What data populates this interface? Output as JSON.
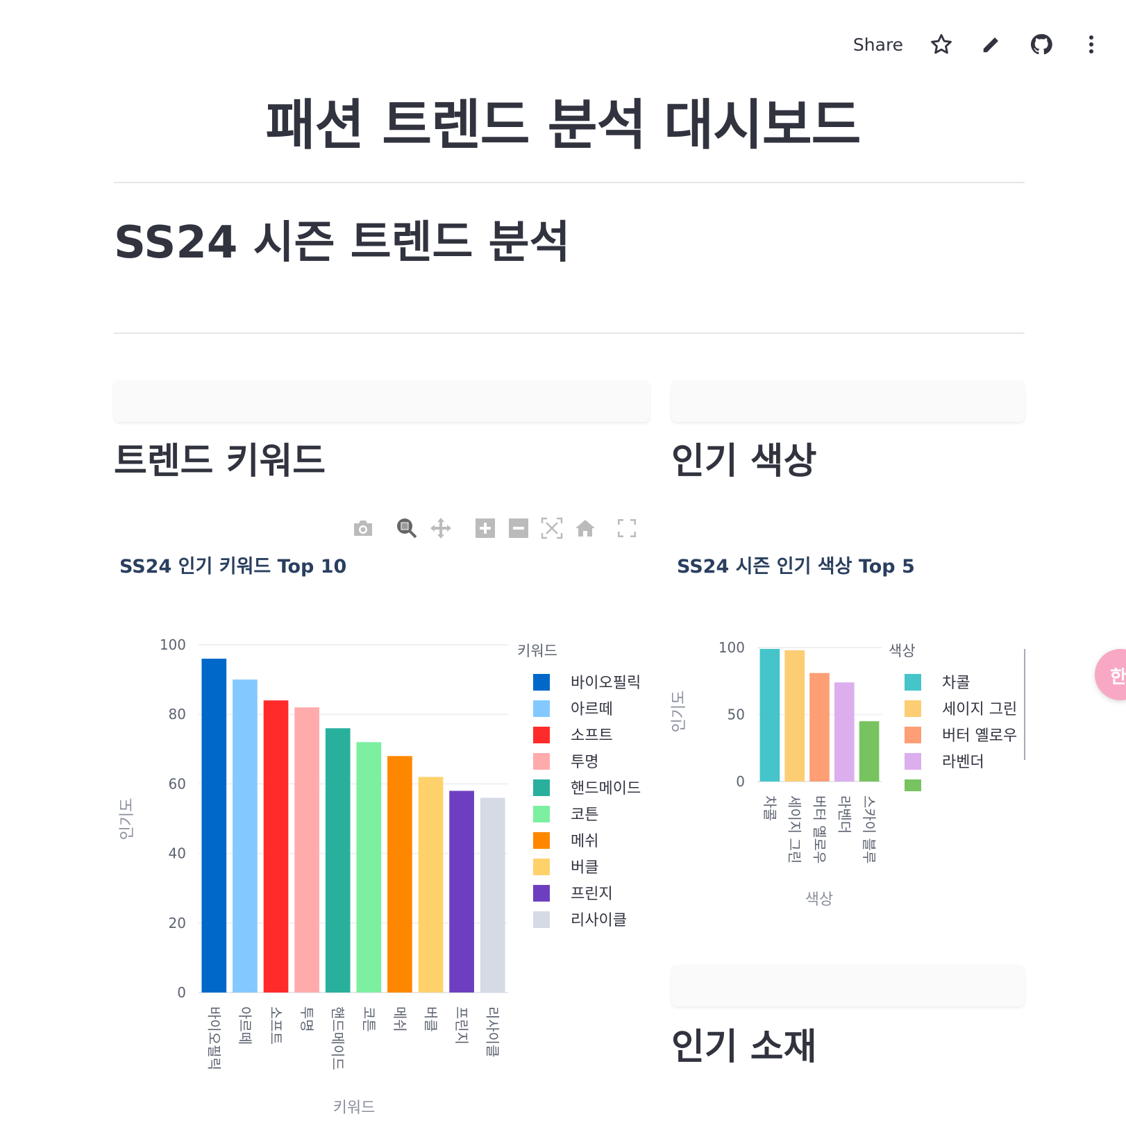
{
  "header": {
    "share_label": "Share",
    "icons": [
      "star-icon",
      "pencil-icon",
      "github-icon",
      "more-vertical-icon"
    ]
  },
  "page_title": "패션 트렌드 분석 대시보드",
  "section_title": "SS24 시즌 트렌드 분석",
  "left_column": {
    "heading": "트렌드 키워드"
  },
  "right_column": {
    "heading": "인기 색상",
    "heading2": "인기 소재"
  },
  "modebar": [
    "camera-icon",
    "zoom-icon",
    "pan-icon",
    "zoom-in-icon",
    "zoom-out-icon",
    "autoscale-icon",
    "reset-axes-icon",
    "fullscreen-icon"
  ],
  "floating_button": {
    "label": "한"
  },
  "chart_data": [
    {
      "type": "bar",
      "title": "SS24 인기 키워드 Top 10",
      "xlabel": "키워드",
      "ylabel": "인기도",
      "ylim": [
        0,
        100
      ],
      "yticks": [
        0,
        20,
        40,
        60,
        80,
        100
      ],
      "grid": true,
      "legend_title": "키워드",
      "legend_placement": "right",
      "categories": [
        "바이오필릭",
        "아르떼",
        "소프트",
        "투명",
        "핸드메이드",
        "코튼",
        "메쉬",
        "버클",
        "프린지",
        "리사이클"
      ],
      "values": [
        96,
        90,
        84,
        82,
        76,
        72,
        68,
        62,
        58,
        56
      ],
      "colors": [
        "#0068c9",
        "#83c9ff",
        "#ff2b2b",
        "#ffabab",
        "#29b09d",
        "#7defa1",
        "#ff8700",
        "#ffd16a",
        "#6d3fc0",
        "#d5dae5"
      ]
    },
    {
      "type": "bar",
      "title": "SS24 시즌 인기 색상 Top 5",
      "xlabel": "색상",
      "ylabel": "인기도",
      "ylim": [
        0,
        100
      ],
      "yticks": [
        0,
        50,
        100
      ],
      "grid": true,
      "legend_title": "색상",
      "legend_placement": "right",
      "categories": [
        "차콜",
        "세이지 그린",
        "버터 옐로우",
        "라벤더",
        "스카이 블루"
      ],
      "values": [
        99,
        98,
        81,
        74,
        45
      ],
      "colors": [
        "#45c4c9",
        "#fccd72",
        "#fd9e75",
        "#dcaeee",
        "#77c35f"
      ]
    }
  ]
}
